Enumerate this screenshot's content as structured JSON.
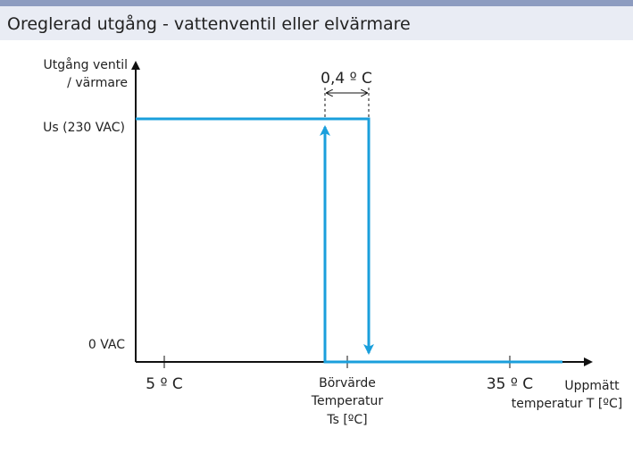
{
  "header": {
    "title": "Oreglerad utgång - vattenventil eller elvärmare"
  },
  "y_axis": {
    "label_lines": [
      "Utgång ventil",
      "/ värmare"
    ],
    "levels": [
      "Us (230 VAC)",
      "0 VAC"
    ]
  },
  "x_axis": {
    "label_lines": [
      "Uppmätt",
      "temperatur T [ºC]"
    ],
    "ticks": [
      "5 º C",
      "35 º C"
    ],
    "setpoint_lines": [
      "Börvärde",
      "Temperatur",
      "Ts [ºC]"
    ]
  },
  "hysteresis": "0,4 º C"
}
